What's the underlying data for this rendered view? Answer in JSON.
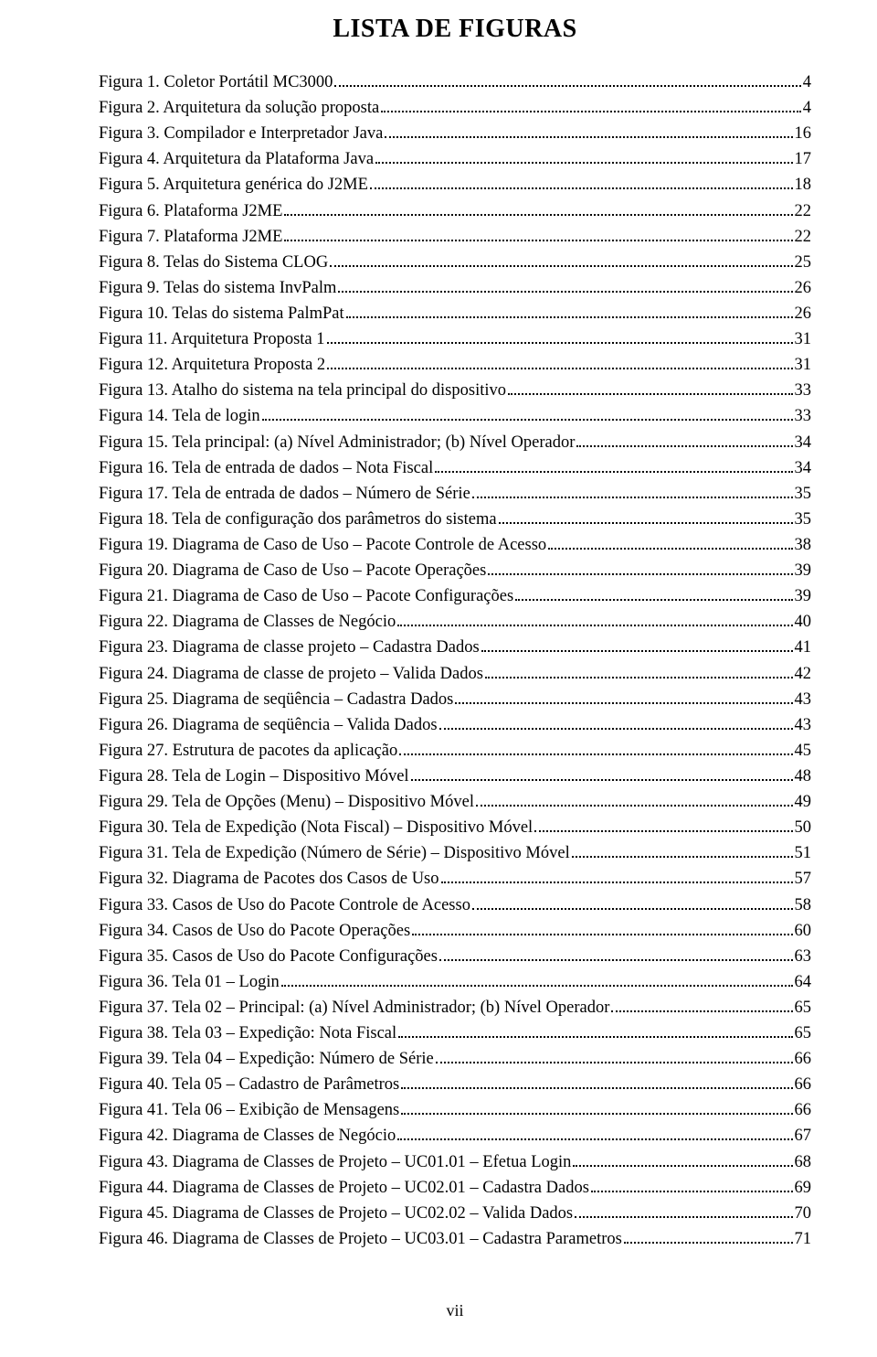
{
  "title": "LISTA DE FIGURAS",
  "footer": "vii",
  "entries": [
    {
      "label": "Figura 1. Coletor Portátil MC3000",
      "page": "4"
    },
    {
      "label": "Figura 2. Arquitetura da solução proposta",
      "page": "4"
    },
    {
      "label": "Figura 3. Compilador e Interpretador Java",
      "page": "16"
    },
    {
      "label": "Figura 4. Arquitetura da Plataforma Java",
      "page": "17"
    },
    {
      "label": "Figura 5. Arquitetura genérica do J2ME",
      "page": "18"
    },
    {
      "label": "Figura 6. Plataforma J2ME",
      "page": "22"
    },
    {
      "label": "Figura 7. Plataforma J2ME",
      "page": "22"
    },
    {
      "label": "Figura 8. Telas do Sistema CLOG",
      "page": "25"
    },
    {
      "label": "Figura 9. Telas do sistema InvPalm",
      "page": "26"
    },
    {
      "label": "Figura 10. Telas do sistema PalmPat",
      "page": "26"
    },
    {
      "label": "Figura 11. Arquitetura Proposta 1",
      "page": "31"
    },
    {
      "label": "Figura 12. Arquitetura Proposta 2",
      "page": "31"
    },
    {
      "label": "Figura 13. Atalho do sistema na tela principal do dispositivo",
      "page": "33"
    },
    {
      "label": "Figura 14. Tela de login",
      "page": "33"
    },
    {
      "label": "Figura 15. Tela principal: (a) Nível Administrador; (b) Nível Operador",
      "page": "34"
    },
    {
      "label": "Figura 16. Tela de entrada de dados – Nota Fiscal",
      "page": "34"
    },
    {
      "label": "Figura 17. Tela de entrada de dados – Número de Série",
      "page": "35"
    },
    {
      "label": "Figura 18. Tela de configuração dos parâmetros do sistema",
      "page": "35"
    },
    {
      "label": "Figura 19. Diagrama de Caso de Uso – Pacote Controle de Acesso",
      "page": "38"
    },
    {
      "label": "Figura 20. Diagrama de Caso de Uso – Pacote Operações",
      "page": "39"
    },
    {
      "label": "Figura 21. Diagrama de Caso de Uso – Pacote Configurações",
      "page": "39"
    },
    {
      "label": "Figura 22. Diagrama de Classes de Negócio",
      "page": "40"
    },
    {
      "label": "Figura 23. Diagrama de classe projeto – Cadastra Dados",
      "page": "41"
    },
    {
      "label": "Figura 24. Diagrama de classe de projeto – Valida Dados",
      "page": "42"
    },
    {
      "label": "Figura 25. Diagrama de seqüência – Cadastra Dados",
      "page": "43"
    },
    {
      "label": "Figura 26. Diagrama de seqüência – Valida Dados",
      "page": "43"
    },
    {
      "label": "Figura 27. Estrutura de pacotes da aplicação",
      "page": "45"
    },
    {
      "label": "Figura 28. Tela de Login – Dispositivo Móvel",
      "page": "48"
    },
    {
      "label": "Figura 29. Tela de Opções (Menu) – Dispositivo Móvel",
      "page": "49"
    },
    {
      "label": "Figura 30. Tela de Expedição (Nota Fiscal) – Dispositivo Móvel",
      "page": "50"
    },
    {
      "label": "Figura 31. Tela de Expedição (Número de Série) – Dispositivo Móvel",
      "page": "51"
    },
    {
      "label": "Figura 32. Diagrama de Pacotes dos Casos de Uso",
      "page": "57"
    },
    {
      "label": "Figura 33. Casos de Uso do Pacote Controle de Acesso",
      "page": "58"
    },
    {
      "label": "Figura 34. Casos de Uso do Pacote Operações",
      "page": "60"
    },
    {
      "label": "Figura 35. Casos de Uso do Pacote Configurações",
      "page": "63"
    },
    {
      "label": "Figura 36. Tela 01 – Login",
      "page": "64"
    },
    {
      "label": "Figura 37. Tela 02 – Principal: (a) Nível Administrador; (b) Nível Operador",
      "page": "65"
    },
    {
      "label": "Figura 38. Tela 03 – Expedição: Nota Fiscal",
      "page": "65"
    },
    {
      "label": "Figura 39. Tela 04 – Expedição: Número de Série",
      "page": "66"
    },
    {
      "label": "Figura 40. Tela 05 – Cadastro de Parâmetros",
      "page": "66"
    },
    {
      "label": "Figura 41. Tela 06 – Exibição de Mensagens",
      "page": "66"
    },
    {
      "label": "Figura 42. Diagrama de Classes de Negócio",
      "page": "67"
    },
    {
      "label": "Figura 43. Diagrama de Classes de Projeto – UC01.01 – Efetua Login",
      "page": "68"
    },
    {
      "label": "Figura 44. Diagrama de Classes de Projeto – UC02.01 – Cadastra Dados",
      "page": "69"
    },
    {
      "label": "Figura 45. Diagrama de Classes de Projeto – UC02.02 – Valida Dados",
      "page": "70"
    },
    {
      "label": "Figura 46. Diagrama de Classes de Projeto – UC03.01 – Cadastra Parametros",
      "page": "71"
    }
  ]
}
